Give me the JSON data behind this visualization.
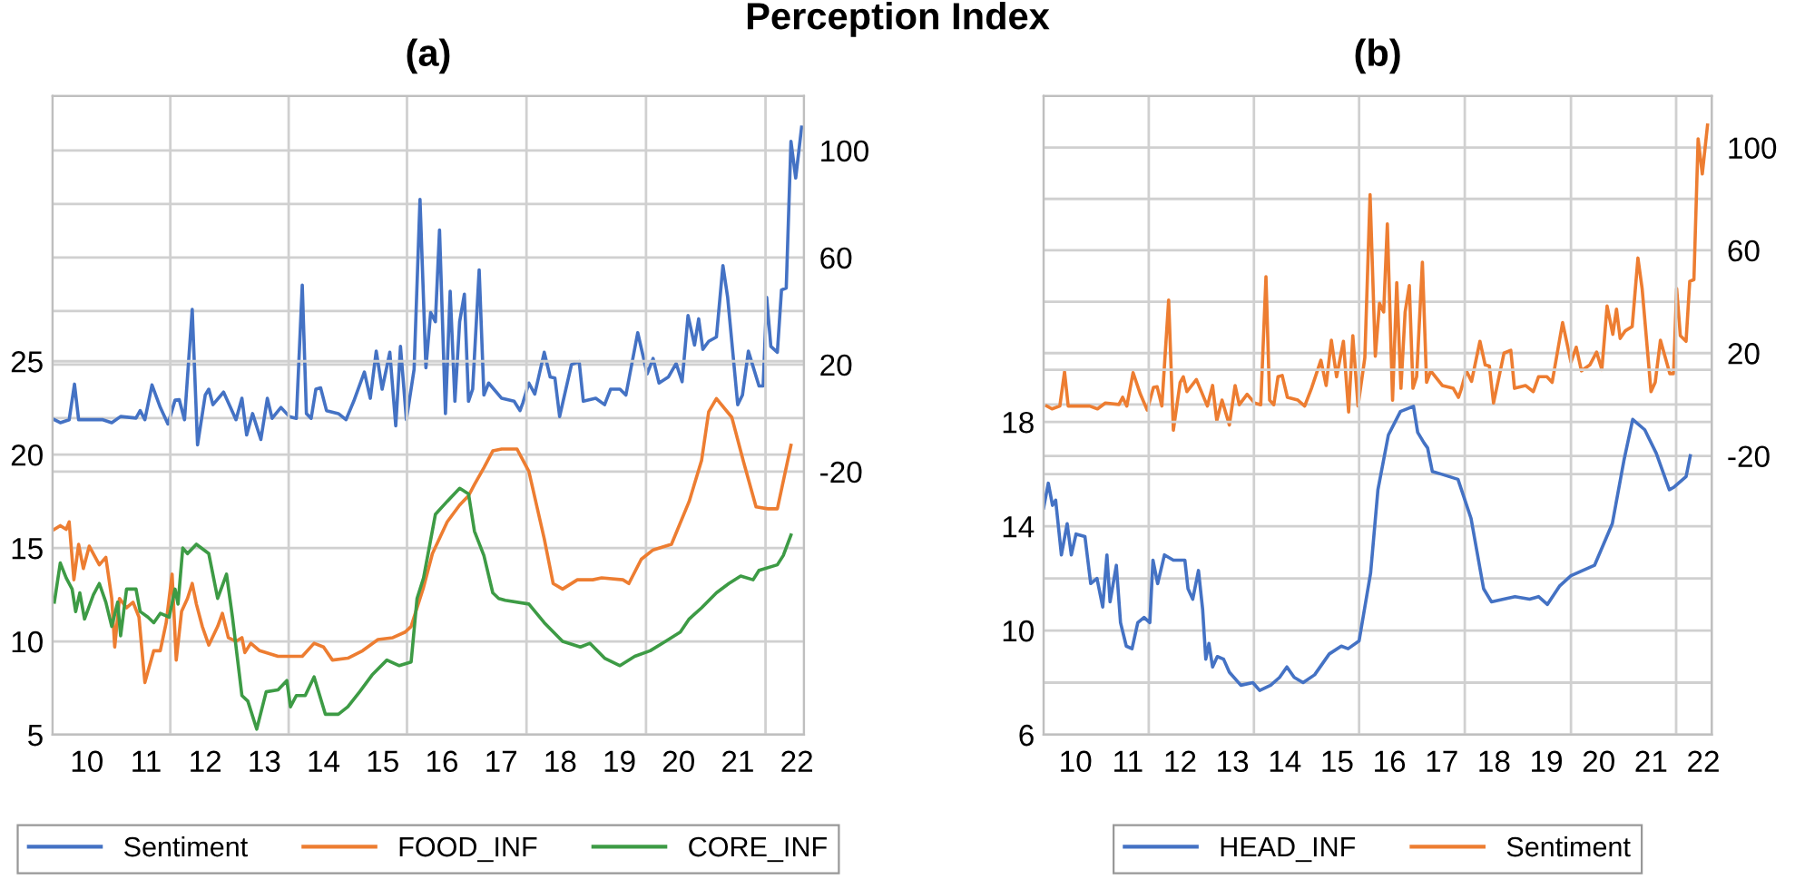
{
  "chart_data": [
    {
      "type": "line",
      "title": "(a)",
      "annotations": [
        "Perception Index"
      ],
      "xlim": [
        9.42,
        22.12
      ],
      "ylim": [
        5,
        39.2
      ],
      "y2lim": [
        -118.3,
        120.3
      ],
      "xticks": [
        {
          "value": 10,
          "label": "10"
        },
        {
          "value": 11,
          "label": "11"
        },
        {
          "value": 12,
          "label": "12"
        },
        {
          "value": 13,
          "label": "13"
        },
        {
          "value": 14,
          "label": "14"
        },
        {
          "value": 15,
          "label": "15"
        },
        {
          "value": 16,
          "label": "16"
        },
        {
          "value": 17,
          "label": "17"
        },
        {
          "value": 18,
          "label": "18"
        },
        {
          "value": 19,
          "label": "19"
        },
        {
          "value": 20,
          "label": "20"
        },
        {
          "value": 21,
          "label": "21"
        },
        {
          "value": 22,
          "label": "22"
        },
        {
          "value": 11.41,
          "label": null
        },
        {
          "value": 13.41,
          "label": null
        },
        {
          "value": 15.41,
          "label": null
        },
        {
          "value": 17.43,
          "label": null
        },
        {
          "value": 19.45,
          "label": null
        },
        {
          "value": 21.47,
          "label": null
        }
      ],
      "yticks": [
        5,
        10,
        15,
        20,
        25
      ],
      "y2ticks": [
        -20,
        {
          "value": 0,
          "label": null
        },
        20,
        {
          "value": 40,
          "label": null
        },
        60,
        {
          "value": 80,
          "label": null
        },
        100
      ],
      "grid": true,
      "legend": "bottom",
      "series": [
        {
          "name": "Sentiment",
          "color": "#4472c4",
          "axis": "y2",
          "x": [
            9.45,
            9.55,
            9.7,
            9.79,
            9.86,
            10.27,
            10.42,
            10.57,
            10.83,
            10.9,
            10.98,
            11.1,
            11.24,
            11.37,
            11.49,
            11.56,
            11.65,
            11.78,
            11.87,
            12.0,
            12.06,
            12.13,
            12.31,
            12.52,
            12.62,
            12.7,
            12.8,
            12.94,
            13.05,
            13.13,
            13.28,
            13.42,
            13.54,
            13.64,
            13.71,
            13.79,
            13.87,
            13.95,
            14.05,
            14.25,
            14.38,
            14.51,
            14.69,
            14.79,
            14.89,
            14.99,
            15.12,
            15.22,
            15.3,
            15.4,
            15.53,
            15.63,
            15.73,
            15.81,
            15.89,
            15.96,
            16.06,
            16.14,
            16.22,
            16.3,
            16.38,
            16.45,
            16.52,
            16.63,
            16.71,
            16.79,
            17.01,
            17.22,
            17.32,
            17.37,
            17.47,
            17.57,
            17.73,
            17.83,
            17.91,
            17.99,
            18.19,
            18.32,
            18.39,
            18.6,
            18.75,
            18.85,
            19.01,
            19.11,
            19.31,
            19.47,
            19.57,
            19.67,
            19.83,
            19.96,
            20.06,
            20.16,
            20.27,
            20.34,
            20.41,
            20.51,
            20.64,
            20.75,
            20.83,
            21.0,
            21.08,
            21.18,
            21.36,
            21.43,
            21.49,
            21.56,
            21.67,
            21.74,
            21.82,
            21.9,
            21.98,
            22.08
          ],
          "values": [
            -0.6,
            -1.7,
            -0.6,
            12.7,
            -0.6,
            -0.6,
            -1.7,
            0.6,
            0,
            2.8,
            -0.6,
            12.4,
            4,
            -2.2,
            6.7,
            6.9,
            -0.6,
            40.6,
            -10,
            8.6,
            10.8,
            5,
            9.7,
            -0.6,
            7.4,
            -6.3,
            1.7,
            -8,
            7.4,
            -0.1,
            4,
            0.6,
            -0.1,
            49.7,
            1.7,
            -0.1,
            10.8,
            11.3,
            2.8,
            1.7,
            -0.6,
            6.3,
            17.2,
            7.4,
            25,
            10.8,
            24.6,
            -2.9,
            26.8,
            -0.6,
            18.2,
            81.7,
            18.8,
            39.4,
            36,
            70.3,
            1.7,
            47.4,
            6.3,
            36,
            46.3,
            6.3,
            10.8,
            55.4,
            8.6,
            13.1,
            7.4,
            6.3,
            2.8,
            5.8,
            13.1,
            9,
            24.6,
            15.4,
            15,
            0.6,
            20,
            21.1,
            6.3,
            7.4,
            5,
            10.8,
            10.8,
            8.6,
            31.9,
            16.5,
            22.3,
            13.1,
            15.4,
            20.4,
            13.6,
            38.3,
            27.3,
            37.1,
            25.7,
            28.7,
            30.3,
            57,
            45.1,
            5,
            8.6,
            25,
            12,
            12,
            45.1,
            26.8,
            24.6,
            47.9,
            48.6,
            103.4,
            89.7,
            108.7
          ]
        },
        {
          "name": "FOOD_INF",
          "color": "#ed7d31",
          "x": [
            9.45,
            9.55,
            9.65,
            9.7,
            9.78,
            9.86,
            9.94,
            10.04,
            10.21,
            10.32,
            10.42,
            10.47,
            10.55,
            10.67,
            10.78,
            10.88,
            10.98,
            11.13,
            11.24,
            11.34,
            11.44,
            11.51,
            11.6,
            11.7,
            11.78,
            11.85,
            11.95,
            12.06,
            12.21,
            12.29,
            12.39,
            12.52,
            12.62,
            12.67,
            12.77,
            12.92,
            13.23,
            13.64,
            13.84,
            14.0,
            14.15,
            14.41,
            14.66,
            14.92,
            15.17,
            15.38,
            15.48,
            15.69,
            15.84,
            16.09,
            16.3,
            16.45,
            16.55,
            16.71,
            16.86,
            17.01,
            17.27,
            17.47,
            17.73,
            17.88,
            18.04,
            18.29,
            18.55,
            18.7,
            19.06,
            19.16,
            19.37,
            19.57,
            19.88,
            20.18,
            20.39,
            20.51,
            20.64,
            20.9,
            21.1,
            21.31,
            21.51,
            21.67,
            21.9
          ],
          "values": [
            16.0,
            16.2,
            16.0,
            16.4,
            13.3,
            15.2,
            13.9,
            15.1,
            14.1,
            14.5,
            12.3,
            9.7,
            12.3,
            11.8,
            12.1,
            11.3,
            7.8,
            9.5,
            9.5,
            11.0,
            13.6,
            9.0,
            11.6,
            12.3,
            13.1,
            12.0,
            10.8,
            9.8,
            10.8,
            11.5,
            10.2,
            10.0,
            10.2,
            9.4,
            9.9,
            9.5,
            9.2,
            9.2,
            9.9,
            9.7,
            9.0,
            9.1,
            9.5,
            10.1,
            10.2,
            10.5,
            10.8,
            12.9,
            14.7,
            16.4,
            17.3,
            17.8,
            18.4,
            19.3,
            20.2,
            20.3,
            20.3,
            19.1,
            15.5,
            13.1,
            12.8,
            13.3,
            13.3,
            13.4,
            13.3,
            13.1,
            14.4,
            14.9,
            15.2,
            17.5,
            19.7,
            22.3,
            23.0,
            22.0,
            19.6,
            17.2,
            17.1,
            17.1,
            20.5
          ]
        },
        {
          "name": "CORE_INF",
          "color": "#3d9b45",
          "x": [
            9.45,
            9.55,
            9.65,
            9.75,
            9.81,
            9.88,
            9.96,
            10.11,
            10.21,
            10.32,
            10.42,
            10.52,
            10.57,
            10.67,
            10.83,
            10.9,
            11.03,
            11.13,
            11.24,
            11.39,
            11.49,
            11.54,
            11.62,
            11.7,
            11.85,
            12.06,
            12.21,
            12.36,
            12.46,
            12.62,
            12.72,
            12.87,
            13.03,
            13.23,
            13.38,
            13.44,
            13.54,
            13.69,
            13.84,
            14.03,
            14.25,
            14.41,
            14.61,
            14.82,
            15.07,
            15.28,
            15.48,
            15.58,
            15.69,
            15.89,
            16.09,
            16.3,
            16.45,
            16.55,
            16.71,
            16.86,
            16.96,
            17.07,
            17.47,
            17.73,
            18.04,
            18.34,
            18.5,
            18.75,
            19.01,
            19.26,
            19.52,
            19.78,
            20.03,
            20.18,
            20.39,
            20.64,
            20.85,
            21.05,
            21.26,
            21.36,
            21.67,
            21.77,
            21.9
          ],
          "values": [
            12.1,
            14.2,
            13.4,
            12.8,
            11.6,
            12.6,
            11.2,
            12.5,
            13.1,
            12.1,
            10.8,
            12.1,
            10.3,
            12.8,
            12.8,
            11.6,
            11.3,
            11.0,
            11.5,
            11.3,
            12.8,
            12.0,
            15.0,
            14.7,
            15.2,
            14.7,
            12.3,
            13.6,
            11.3,
            7.1,
            6.8,
            5.3,
            7.3,
            7.4,
            7.9,
            6.5,
            7.1,
            7.1,
            8.1,
            6.1,
            6.1,
            6.5,
            7.3,
            8.2,
            9.0,
            8.7,
            8.9,
            12.3,
            13.4,
            16.8,
            17.5,
            18.2,
            17.9,
            15.9,
            14.6,
            12.6,
            12.3,
            12.2,
            12.0,
            11.0,
            10.0,
            9.7,
            9.9,
            9.1,
            8.7,
            9.2,
            9.5,
            10.0,
            10.5,
            11.2,
            11.8,
            12.6,
            13.1,
            13.5,
            13.3,
            13.8,
            14.1,
            14.6,
            15.7
          ]
        }
      ]
    },
    {
      "type": "line",
      "title": "(b)",
      "xlim": [
        9.39,
        22.16
      ],
      "ylim": [
        6,
        30.5
      ],
      "y2lim": [
        -128.5,
        120
      ],
      "xticks": [
        {
          "value": 10,
          "label": "10"
        },
        {
          "value": 11,
          "label": "11"
        },
        {
          "value": 12,
          "label": "12"
        },
        {
          "value": 13,
          "label": "13"
        },
        {
          "value": 14,
          "label": "14"
        },
        {
          "value": 15,
          "label": "15"
        },
        {
          "value": 16,
          "label": "16"
        },
        {
          "value": 17,
          "label": "17"
        },
        {
          "value": 18,
          "label": "18"
        },
        {
          "value": 19,
          "label": "19"
        },
        {
          "value": 20,
          "label": "20"
        },
        {
          "value": 21,
          "label": "21"
        },
        {
          "value": 22,
          "label": "22"
        },
        {
          "value": 11.4,
          "label": null
        },
        {
          "value": 13.41,
          "label": null
        },
        {
          "value": 15.42,
          "label": null
        },
        {
          "value": 17.44,
          "label": null
        },
        {
          "value": 19.47,
          "label": null
        },
        {
          "value": 21.48,
          "label": null
        }
      ],
      "yticks": [
        6,
        {
          "value": 8,
          "label": null
        },
        10,
        {
          "value": 12,
          "label": null
        },
        14,
        {
          "value": 16,
          "label": null
        },
        18,
        {
          "value": 20,
          "label": null
        }
      ],
      "y2ticks": [
        -20,
        {
          "value": 0,
          "label": null
        },
        20,
        {
          "value": 40,
          "label": null
        },
        60,
        {
          "value": 80,
          "label": null
        },
        100
      ],
      "grid": true,
      "legend": "bottom",
      "series": [
        {
          "name": "HEAD_INF",
          "color": "#4472c4",
          "x": [
            9.39,
            9.48,
            9.56,
            9.62,
            9.73,
            9.84,
            9.92,
            10.01,
            10.18,
            10.29,
            10.41,
            10.52,
            10.6,
            10.66,
            10.78,
            10.86,
            10.97,
            11.08,
            11.19,
            11.31,
            11.42,
            11.48,
            11.57,
            11.7,
            11.87,
            12.09,
            12.15,
            12.24,
            12.35,
            12.43,
            12.49,
            12.55,
            12.62,
            12.71,
            12.83,
            12.94,
            13.16,
            13.39,
            13.52,
            13.73,
            13.9,
            14.04,
            14.18,
            14.35,
            14.57,
            14.85,
            15.08,
            15.21,
            15.42,
            15.64,
            15.78,
            15.98,
            16.21,
            16.46,
            16.54,
            16.66,
            16.73,
            16.82,
            16.99,
            17.31,
            17.56,
            17.8,
            17.95,
            18.18,
            18.4,
            18.68,
            18.85,
            19.02,
            19.25,
            19.47,
            19.92,
            20.26,
            20.48,
            20.65,
            20.88,
            21.1,
            21.35,
            21.44,
            21.67,
            21.75
          ],
          "values": [
            14.7,
            15.65,
            14.8,
            15.0,
            12.9,
            14.1,
            12.9,
            13.7,
            13.6,
            11.8,
            12.0,
            10.9,
            12.9,
            11.1,
            12.5,
            10.3,
            9.4,
            9.3,
            10.3,
            10.5,
            10.3,
            12.7,
            11.8,
            12.9,
            12.7,
            12.7,
            11.6,
            11.2,
            12.3,
            10.8,
            8.9,
            9.5,
            8.6,
            9.0,
            8.9,
            8.4,
            7.9,
            8.0,
            7.7,
            7.9,
            8.2,
            8.6,
            8.2,
            8.0,
            8.3,
            9.1,
            9.4,
            9.3,
            9.6,
            12.2,
            15.4,
            17.5,
            18.4,
            18.6,
            17.6,
            17.2,
            17.0,
            16.1,
            16.0,
            15.8,
            14.3,
            11.6,
            11.1,
            11.2,
            11.3,
            11.2,
            11.3,
            11.0,
            11.7,
            12.1,
            12.5,
            14.1,
            16.5,
            18.1,
            17.7,
            16.8,
            15.4,
            15.5,
            15.9,
            16.7
          ]
        },
        {
          "name": "Sentiment",
          "color": "#ed7d31",
          "axis": "y2",
          "x": [
            9.45,
            9.55,
            9.7,
            9.79,
            9.86,
            10.27,
            10.42,
            10.57,
            10.83,
            10.9,
            10.98,
            11.1,
            11.24,
            11.37,
            11.49,
            11.56,
            11.65,
            11.78,
            11.87,
            12.0,
            12.06,
            12.13,
            12.31,
            12.52,
            12.62,
            12.7,
            12.8,
            12.94,
            13.05,
            13.13,
            13.28,
            13.42,
            13.54,
            13.64,
            13.71,
            13.79,
            13.87,
            13.95,
            14.05,
            14.25,
            14.38,
            14.51,
            14.69,
            14.79,
            14.89,
            14.99,
            15.12,
            15.22,
            15.3,
            15.4,
            15.53,
            15.63,
            15.73,
            15.81,
            15.89,
            15.96,
            16.06,
            16.14,
            16.22,
            16.3,
            16.38,
            16.45,
            16.52,
            16.63,
            16.71,
            16.79,
            17.01,
            17.22,
            17.32,
            17.37,
            17.47,
            17.57,
            17.73,
            17.83,
            17.91,
            17.99,
            18.19,
            18.32,
            18.39,
            18.6,
            18.75,
            18.85,
            19.01,
            19.11,
            19.31,
            19.47,
            19.57,
            19.67,
            19.83,
            19.96,
            20.06,
            20.16,
            20.27,
            20.34,
            20.41,
            20.51,
            20.64,
            20.75,
            20.83,
            21.0,
            21.08,
            21.18,
            21.36,
            21.43,
            21.49,
            21.56,
            21.67,
            21.74,
            21.82,
            21.9,
            21.98,
            22.08
          ],
          "values": [
            -0.6,
            -1.7,
            -0.6,
            12.7,
            -0.6,
            -0.6,
            -1.7,
            0.6,
            0,
            2.8,
            -0.6,
            12.4,
            4,
            -2.2,
            6.7,
            6.9,
            -0.6,
            40.6,
            -10,
            8.6,
            10.8,
            5,
            9.7,
            -0.6,
            7.4,
            -6.3,
            1.7,
            -8,
            7.4,
            -0.1,
            4,
            0.6,
            -0.1,
            49.7,
            1.7,
            -0.1,
            10.8,
            11.3,
            2.8,
            1.7,
            -0.6,
            6.3,
            17.2,
            7.4,
            25,
            10.8,
            24.6,
            -2.9,
            26.8,
            -0.6,
            18.2,
            81.7,
            18.8,
            39.4,
            36,
            70.3,
            1.7,
            47.4,
            6.3,
            36,
            46.3,
            6.3,
            10.8,
            55.4,
            8.6,
            13.1,
            7.4,
            6.3,
            2.8,
            5.8,
            13.1,
            9,
            24.6,
            15.4,
            15,
            0.6,
            20,
            21.1,
            6.3,
            7.4,
            5,
            10.8,
            10.8,
            8.6,
            31.9,
            16.5,
            22.3,
            13.1,
            15.4,
            20.4,
            13.6,
            38.3,
            27.3,
            37.1,
            25.7,
            28.7,
            30.3,
            57,
            45.1,
            5,
            8.6,
            25,
            12,
            12,
            45.1,
            26.8,
            24.6,
            47.9,
            48.6,
            103.4,
            89.7,
            108.7
          ]
        }
      ]
    }
  ]
}
